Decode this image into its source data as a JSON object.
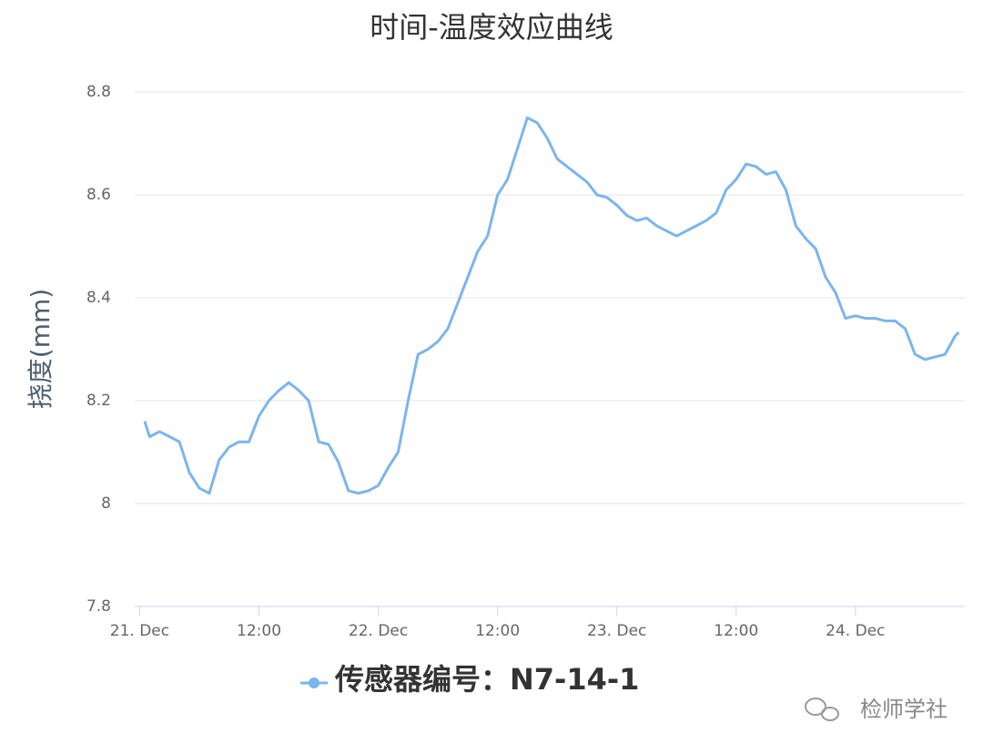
{
  "chart_data": {
    "type": "line",
    "title": "时间-温度效应曲线",
    "y_label": "挠度(mm)",
    "watermark": "检师学社",
    "x": [
      0.5,
      1,
      2,
      3,
      4,
      5,
      6,
      7,
      8,
      9,
      10,
      11,
      12,
      13,
      14,
      15,
      16,
      17,
      18,
      19,
      20,
      21,
      22,
      23,
      24,
      25,
      26,
      27,
      28,
      29,
      30,
      31,
      32,
      33,
      34,
      35,
      36,
      37,
      38,
      39,
      40,
      41,
      42,
      43,
      44,
      45,
      46,
      47,
      48,
      49,
      50,
      51,
      52,
      53,
      54,
      55,
      56,
      57,
      58,
      59,
      60,
      61,
      62,
      63,
      64,
      65,
      66,
      67,
      68,
      69,
      70,
      71,
      72,
      73,
      74,
      75,
      76,
      77,
      78,
      79,
      80,
      81,
      82,
      82.4
    ],
    "series": [
      {
        "name": "传感器编号：N7-14-1",
        "color": "#7cb5ec",
        "values": [
          8.16,
          8.13,
          8.14,
          8.13,
          8.12,
          8.06,
          8.03,
          8.02,
          8.085,
          8.11,
          8.12,
          8.12,
          8.17,
          8.2,
          8.22,
          8.235,
          8.22,
          8.2,
          8.12,
          8.115,
          8.08,
          8.025,
          8.02,
          8.025,
          8.035,
          8.07,
          8.1,
          8.2,
          8.29,
          8.3,
          8.315,
          8.34,
          8.39,
          8.44,
          8.49,
          8.52,
          8.6,
          8.63,
          8.69,
          8.75,
          8.74,
          8.71,
          8.67,
          8.655,
          8.64,
          8.625,
          8.6,
          8.595,
          8.58,
          8.56,
          8.55,
          8.555,
          8.54,
          8.53,
          8.52,
          8.53,
          8.54,
          8.55,
          8.565,
          8.61,
          8.63,
          8.66,
          8.655,
          8.64,
          8.645,
          8.61,
          8.54,
          8.515,
          8.495,
          8.44,
          8.41,
          8.36,
          8.365,
          8.36,
          8.36,
          8.355,
          8.355,
          8.34,
          8.29,
          8.28,
          8.285,
          8.29,
          8.325,
          8.333
        ]
      }
    ],
    "xlim": [
      -0.5,
      83
    ],
    "xticks": [
      {
        "value": 0,
        "label": "21. Dec"
      },
      {
        "value": 12,
        "label": "12:00"
      },
      {
        "value": 24,
        "label": "22. Dec"
      },
      {
        "value": 36,
        "label": "12:00"
      },
      {
        "value": 48,
        "label": "23. Dec"
      },
      {
        "value": 60,
        "label": "12:00"
      },
      {
        "value": 72,
        "label": "24. Dec"
      }
    ],
    "ylim": [
      7.8,
      8.8
    ],
    "yticks": [
      {
        "value": 7.8,
        "label": "7.8"
      },
      {
        "value": 8,
        "label": "8"
      },
      {
        "value": 8.2,
        "label": "8.2"
      },
      {
        "value": 8.4,
        "label": "8.4"
      },
      {
        "value": 8.6,
        "label": "8.6"
      },
      {
        "value": 8.8,
        "label": "8.8"
      }
    ],
    "grid": true
  }
}
